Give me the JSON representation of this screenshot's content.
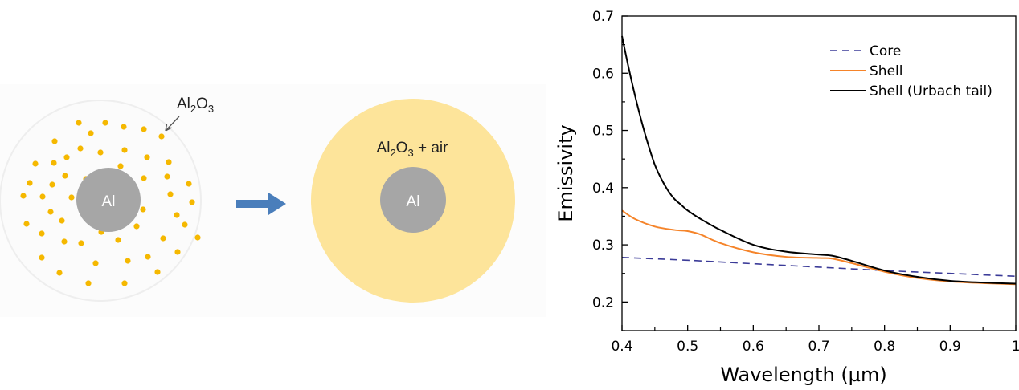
{
  "schematic": {
    "particle_label": {
      "main": "Al",
      "sub": "2",
      "main2": "O",
      "sub2": "3"
    },
    "core_label": "Al",
    "shell_label": {
      "main": "Al",
      "sub": "2",
      "main2": "O",
      "sub2": "3",
      "suffix": " + air"
    },
    "core_label_right": "Al",
    "colors": {
      "particle": "#F5B800",
      "core": "#A6A6A6",
      "shell": "#FDE49A",
      "arrow": "#4A7EBB",
      "outer_disk": "#FBFBFB"
    }
  },
  "chart_data": {
    "type": "line",
    "xlabel": "Wavelength (µm)",
    "ylabel": "Emissivity",
    "xlim": [
      0.4,
      1.0
    ],
    "ylim": [
      0.15,
      0.7
    ],
    "xticks": [
      0.4,
      0.5,
      0.6,
      0.7,
      0.8,
      0.9,
      1
    ],
    "xtick_labels": [
      "0.4",
      "0.5",
      "0.6",
      "0.7",
      "0.8",
      "0.9",
      "1"
    ],
    "yticks": [
      0.2,
      0.3,
      0.4,
      0.5,
      0.6,
      0.7
    ],
    "ytick_labels": [
      "0.2",
      "0.3",
      "0.4",
      "0.5",
      "0.6",
      "0.7"
    ],
    "grid": false,
    "legend_position": "top-right",
    "series": [
      {
        "name": "Core",
        "color": "#3B3B98",
        "dash": true,
        "x": [
          0.4,
          0.5,
          0.6,
          0.7,
          0.8,
          0.9,
          1.0
        ],
        "y": [
          0.278,
          0.273,
          0.267,
          0.261,
          0.255,
          0.25,
          0.245
        ]
      },
      {
        "name": "Shell",
        "color": "#F5842A",
        "dash": false,
        "x": [
          0.4,
          0.42,
          0.45,
          0.48,
          0.5,
          0.52,
          0.55,
          0.6,
          0.65,
          0.7,
          0.72,
          0.75,
          0.8,
          0.85,
          0.9,
          0.95,
          1.0
        ],
        "y": [
          0.36,
          0.345,
          0.332,
          0.326,
          0.324,
          0.318,
          0.303,
          0.287,
          0.279,
          0.277,
          0.276,
          0.268,
          0.253,
          0.242,
          0.236,
          0.233,
          0.231
        ]
      },
      {
        "name": "Shell (Urbach tail)",
        "color": "#000000",
        "dash": false,
        "x": [
          0.4,
          0.41,
          0.42,
          0.43,
          0.44,
          0.45,
          0.46,
          0.47,
          0.48,
          0.49,
          0.5,
          0.52,
          0.55,
          0.6,
          0.65,
          0.7,
          0.72,
          0.75,
          0.8,
          0.85,
          0.9,
          0.95,
          1.0
        ],
        "y": [
          0.665,
          0.61,
          0.56,
          0.515,
          0.475,
          0.44,
          0.415,
          0.395,
          0.38,
          0.37,
          0.36,
          0.345,
          0.326,
          0.3,
          0.288,
          0.283,
          0.281,
          0.272,
          0.255,
          0.244,
          0.237,
          0.234,
          0.232
        ]
      }
    ]
  }
}
